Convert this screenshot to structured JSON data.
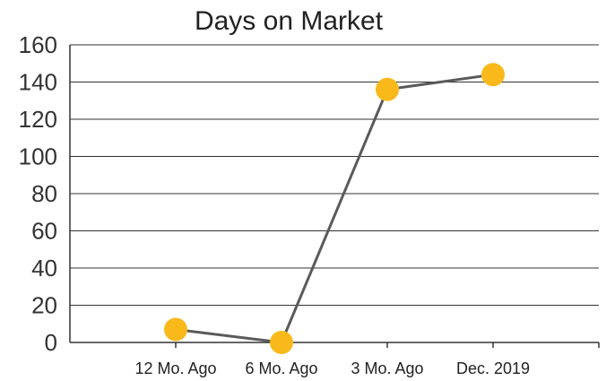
{
  "chart_data": {
    "type": "line",
    "title": "Days on Market",
    "xlabel": "",
    "ylabel": "",
    "categories": [
      "12 Mo. Ago",
      "6 Mo. Ago",
      "3 Mo. Ago",
      "Dec. 2019"
    ],
    "series": [
      {
        "values": [
          7,
          0,
          136,
          144
        ]
      }
    ],
    "ylim": [
      0,
      160
    ],
    "yticks": [
      "0",
      "20",
      "40",
      "60",
      "80",
      "100",
      "120",
      "140",
      "160"
    ],
    "grid": true,
    "legend": "none",
    "colors": {
      "line": "#5a5a5a",
      "marker": "#f9b91b",
      "grid": "#333333"
    }
  }
}
